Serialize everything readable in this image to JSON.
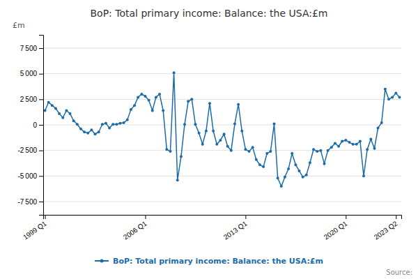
{
  "chart_data": {
    "type": "line",
    "title": "BoP: Total primary income: Balance: the USA:£m",
    "ylabel": "£m",
    "annotations": [
      "Source:"
    ],
    "categories": [
      "1999 Q1",
      null,
      null,
      null,
      null,
      null,
      null,
      null,
      null,
      null,
      null,
      null,
      null,
      null,
      null,
      null,
      null,
      null,
      null,
      null,
      null,
      null,
      null,
      null,
      null,
      null,
      null,
      null,
      "2006 Q1",
      null,
      null,
      null,
      null,
      null,
      null,
      null,
      null,
      null,
      null,
      null,
      null,
      null,
      null,
      null,
      null,
      null,
      null,
      null,
      null,
      null,
      null,
      null,
      null,
      null,
      null,
      null,
      "2013 Q1",
      null,
      null,
      null,
      null,
      null,
      null,
      null,
      null,
      null,
      null,
      null,
      null,
      null,
      null,
      null,
      null,
      null,
      null,
      null,
      null,
      null,
      null,
      null,
      null,
      null,
      null,
      null,
      "2020 Q1",
      null,
      null,
      null,
      null,
      null,
      null,
      null,
      null,
      null,
      null,
      null,
      null,
      null,
      "2023 Q2",
      null
    ],
    "series": [
      {
        "name": "BoP: Total primary income: Balance: the USA:£m",
        "color": "#1b6ca8",
        "marker": "circle",
        "values": [
          1400,
          2200,
          1900,
          1600,
          1100,
          700,
          1400,
          1100,
          400,
          50,
          -400,
          -700,
          -800,
          -500,
          -900,
          -700,
          50,
          150,
          -300,
          50,
          50,
          150,
          200,
          500,
          1500,
          1900,
          2700,
          3000,
          2800,
          2400,
          1400,
          2700,
          3000,
          1400,
          -2400,
          -2600,
          5100,
          -5400,
          -3100,
          50,
          2300,
          2500,
          50,
          -800,
          -1900,
          -600,
          2100,
          -600,
          -1900,
          -1500,
          -900,
          -2100,
          -2500,
          100,
          2000,
          -600,
          -2400,
          -2600,
          -2200,
          -3400,
          -3900,
          -4100,
          -2800,
          -2600,
          100,
          -5200,
          -6000,
          -5100,
          -4300,
          -2800,
          -3900,
          -4500,
          -5100,
          -4900,
          -3700,
          -2400,
          -2600,
          -2500,
          -3800,
          -2500,
          -2200,
          -1800,
          -2100,
          -1600,
          -1500,
          -1700,
          -1900,
          -1900,
          -1600,
          -5000,
          -2400,
          -1400,
          -2300,
          -300,
          200,
          3500,
          2500,
          2700,
          3100,
          2700
        ]
      }
    ],
    "ylim": [
      -8800,
      8800
    ],
    "yticks": [
      {
        "value": -7500,
        "label": "-7 500"
      },
      {
        "value": -5000,
        "label": "-5 000"
      },
      {
        "value": -2500,
        "label": "-2 500"
      },
      0,
      {
        "value": 2500,
        "label": "2 500"
      },
      {
        "value": 5000,
        "label": "5 000"
      },
      {
        "value": 7500,
        "label": "7 500"
      }
    ],
    "grid": true,
    "legend": "bottom"
  }
}
